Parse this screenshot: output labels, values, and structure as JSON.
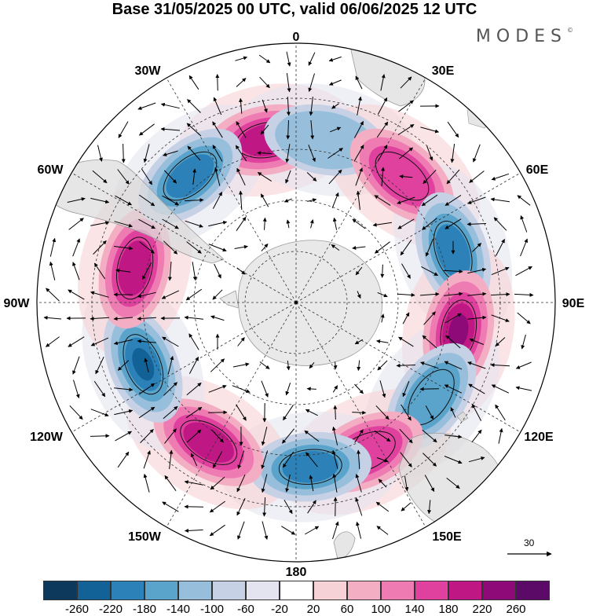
{
  "title": "Base 31/05/2025 00 UTC, valid 06/06/2025 12 UTC",
  "brand": "MODES",
  "brand_mark": "©",
  "longitude_labels": {
    "lon_0": "0",
    "lon_30E": "30E",
    "lon_60E": "60E",
    "lon_90E": "90E",
    "lon_120E": "120E",
    "lon_150E": "150E",
    "lon_180": "180",
    "lon_150W": "150W",
    "lon_120W": "120W",
    "lon_90W": "90W",
    "lon_60W": "60W",
    "lon_30W": "30W"
  },
  "reference_vector": {
    "label": "30"
  },
  "colorbar": {
    "labels": [
      "-260",
      "-220",
      "-180",
      "-140",
      "-100",
      "-60",
      "-20",
      "20",
      "60",
      "100",
      "140",
      "180",
      "220",
      "260"
    ],
    "colors": [
      "#0d3a5c",
      "#136297",
      "#2c82b8",
      "#5aa3ca",
      "#97bfdc",
      "#c6d1e6",
      "#e4e4f0",
      "#ffffff",
      "#f6d2d6",
      "#f4aec4",
      "#ee7cb3",
      "#e0409e",
      "#bf1884",
      "#8e0a78",
      "#5c0a68"
    ]
  },
  "map": {
    "projection": "polar stereographic (south pole)",
    "anomaly_centers": [
      {
        "lon": -10,
        "sign": "positive",
        "strength": 180
      },
      {
        "lon": 10,
        "sign": "negative",
        "strength": 100
      },
      {
        "lon": 40,
        "sign": "positive",
        "strength": 140
      },
      {
        "lon": 72,
        "sign": "negative",
        "strength": 220
      },
      {
        "lon": 100,
        "sign": "positive",
        "strength": 240
      },
      {
        "lon": 125,
        "sign": "negative",
        "strength": 160
      },
      {
        "lon": 155,
        "sign": "positive",
        "strength": 140
      },
      {
        "lon": 175,
        "sign": "negative",
        "strength": 200
      },
      {
        "lon": -148,
        "sign": "positive",
        "strength": 200
      },
      {
        "lon": -112,
        "sign": "negative",
        "strength": 240
      },
      {
        "lon": -78,
        "sign": "positive",
        "strength": 200
      },
      {
        "lon": -40,
        "sign": "negative",
        "strength": 180
      }
    ]
  }
}
